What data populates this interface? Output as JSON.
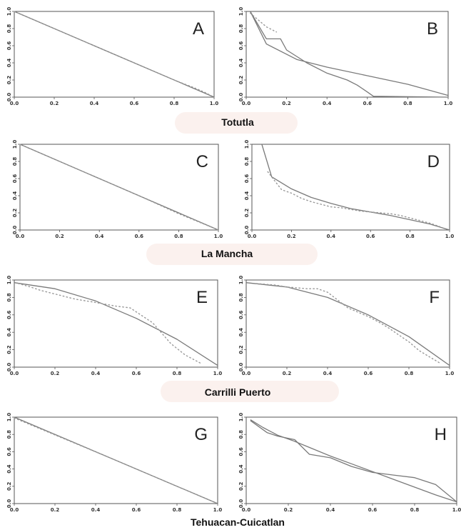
{
  "site_labels": [
    "Totutla",
    "La Mancha",
    "Carrilli Puerto",
    "Tehuacan-Cuicatlan"
  ],
  "chart_data": [
    {
      "type": "line",
      "panel": "A",
      "xlim": [
        0,
        1
      ],
      "ylim": [
        0,
        1
      ],
      "xticks": [
        "0.0",
        "0.2",
        "0.4",
        "0.6",
        "0.8",
        "1.0"
      ],
      "yticks": [
        "0.0",
        "0.2",
        "0.4",
        "0.6",
        "0.8",
        "1.0"
      ],
      "series": [
        {
          "style": "solid",
          "x": [
            0,
            1
          ],
          "y": [
            1,
            0
          ]
        },
        {
          "style": "dotted",
          "x": [
            0,
            0.1,
            0.2,
            0.3,
            0.4,
            0.5,
            0.6,
            0.7,
            0.8,
            0.9,
            0.95,
            1.0
          ],
          "y": [
            1,
            0.9,
            0.8,
            0.7,
            0.6,
            0.5,
            0.4,
            0.3,
            0.2,
            0.11,
            0.06,
            0.0
          ]
        }
      ]
    },
    {
      "type": "line",
      "panel": "B",
      "xlim": [
        0,
        1
      ],
      "ylim": [
        0,
        1
      ],
      "xticks": [
        "0.0",
        "0.2",
        "0.4",
        "0.6",
        "0.8",
        "1.0"
      ],
      "yticks": [
        "0.0",
        "0.2",
        "0.4",
        "0.6",
        "0.8",
        "1.0"
      ],
      "series": [
        {
          "style": "solid",
          "x": [
            0.02,
            0.1,
            0.17,
            0.2,
            0.3,
            0.4,
            0.5,
            0.55,
            0.6,
            0.63,
            1.0
          ],
          "y": [
            1.0,
            0.68,
            0.68,
            0.55,
            0.4,
            0.28,
            0.2,
            0.14,
            0.06,
            0.01,
            0.0
          ]
        },
        {
          "style": "solid",
          "x": [
            0.02,
            0.1,
            0.25,
            0.4,
            0.6,
            0.8,
            1.0
          ],
          "y": [
            1.0,
            0.62,
            0.44,
            0.35,
            0.25,
            0.15,
            0.02
          ]
        },
        {
          "style": "dotted",
          "x": [
            0.02,
            0.06,
            0.1,
            0.15
          ],
          "y": [
            0.98,
            0.9,
            0.82,
            0.76
          ]
        }
      ]
    },
    {
      "type": "line",
      "panel": "C",
      "xlim": [
        0,
        1
      ],
      "ylim": [
        0,
        1
      ],
      "xticks": [
        "0.0",
        "0.2",
        "0.4",
        "0.6",
        "0.8",
        "1.0"
      ],
      "yticks": [
        "0.0",
        "0.2",
        "0.4",
        "0.6",
        "0.8",
        "1.0"
      ],
      "series": [
        {
          "style": "solid",
          "x": [
            0,
            1
          ],
          "y": [
            1,
            0
          ]
        },
        {
          "style": "dotted",
          "x": [
            0,
            0.2,
            0.4,
            0.6,
            0.8,
            1.0
          ],
          "y": [
            1,
            0.8,
            0.6,
            0.4,
            0.19,
            0.0
          ]
        }
      ]
    },
    {
      "type": "line",
      "panel": "D",
      "xlim": [
        0,
        1
      ],
      "ylim": [
        0,
        1
      ],
      "xticks": [
        "0.0",
        "0.2",
        "0.4",
        "0.6",
        "0.8",
        "1.0"
      ],
      "yticks": [
        "0.0",
        "0.2",
        "0.4",
        "0.6",
        "0.8",
        "1.0"
      ],
      "series": [
        {
          "style": "solid",
          "x": [
            0.05,
            0.1,
            0.2,
            0.3,
            0.4,
            0.5,
            0.6,
            0.7,
            0.8,
            0.9,
            1.0
          ],
          "y": [
            1.0,
            0.62,
            0.48,
            0.38,
            0.31,
            0.25,
            0.21,
            0.17,
            0.12,
            0.07,
            0.0
          ]
        },
        {
          "style": "dotted",
          "x": [
            0.08,
            0.12,
            0.15,
            0.2,
            0.25,
            0.3,
            0.35,
            0.4,
            0.45,
            0.5,
            0.55,
            0.6,
            0.65,
            0.7,
            0.75,
            0.8,
            0.85,
            0.9,
            0.95
          ],
          "y": [
            0.68,
            0.56,
            0.47,
            0.43,
            0.37,
            0.33,
            0.3,
            0.27,
            0.26,
            0.24,
            0.22,
            0.21,
            0.2,
            0.19,
            0.17,
            0.14,
            0.11,
            0.08,
            0.04
          ]
        }
      ]
    },
    {
      "type": "line",
      "panel": "E",
      "xlim": [
        0,
        1
      ],
      "ylim": [
        0,
        1
      ],
      "xticks": [
        "0.0",
        "0.2",
        "0.4",
        "0.6",
        "0.8",
        "1.0"
      ],
      "yticks": [
        "0.0",
        "0.2",
        "0.4",
        "0.6",
        "0.8",
        "1.0"
      ],
      "series": [
        {
          "style": "solid",
          "x": [
            0,
            0.2,
            0.4,
            0.6,
            0.8,
            1.0
          ],
          "y": [
            0.97,
            0.9,
            0.76,
            0.56,
            0.32,
            0.02
          ]
        },
        {
          "style": "dotted",
          "x": [
            0.02,
            0.08,
            0.13,
            0.3,
            0.38,
            0.5,
            0.57,
            0.68,
            0.77,
            0.84,
            0.92
          ],
          "y": [
            0.96,
            0.92,
            0.88,
            0.78,
            0.75,
            0.7,
            0.68,
            0.51,
            0.27,
            0.14,
            0.04
          ]
        }
      ]
    },
    {
      "type": "line",
      "panel": "F",
      "xlim": [
        0,
        1
      ],
      "ylim": [
        0,
        1
      ],
      "xticks": [
        "0.0",
        "0.2",
        "0.4",
        "0.6",
        "0.8",
        "1.0"
      ],
      "yticks": [
        "0.0",
        "0.2",
        "0.4",
        "0.6",
        "0.8",
        "1.0"
      ],
      "series": [
        {
          "style": "solid",
          "x": [
            0,
            0.2,
            0.4,
            0.6,
            0.8,
            1.0
          ],
          "y": [
            0.97,
            0.92,
            0.8,
            0.6,
            0.35,
            0.02
          ]
        },
        {
          "style": "dotted",
          "x": [
            0.05,
            0.1,
            0.15,
            0.2,
            0.25,
            0.3,
            0.35,
            0.4,
            0.45,
            0.5,
            0.55,
            0.6,
            0.65,
            0.7,
            0.75,
            0.8,
            0.85,
            0.9,
            0.95
          ],
          "y": [
            0.96,
            0.95,
            0.94,
            0.92,
            0.91,
            0.9,
            0.9,
            0.86,
            0.77,
            0.68,
            0.63,
            0.58,
            0.52,
            0.45,
            0.37,
            0.29,
            0.19,
            0.12,
            0.05
          ]
        }
      ]
    },
    {
      "type": "line",
      "panel": "G",
      "xlim": [
        0,
        1
      ],
      "ylim": [
        0,
        1
      ],
      "xticks": [
        "0.0",
        "0.2",
        "0.4",
        "0.6",
        "0.8",
        "1.0"
      ],
      "yticks": [
        "0.0",
        "0.2",
        "0.4",
        "0.6",
        "0.8",
        "1.0"
      ],
      "series": [
        {
          "style": "solid",
          "x": [
            0,
            1
          ],
          "y": [
            1,
            0
          ]
        },
        {
          "style": "dotted",
          "x": [
            0,
            0.5,
            1.0
          ],
          "y": [
            0.99,
            0.5,
            0.0
          ]
        }
      ]
    },
    {
      "type": "line",
      "panel": "H",
      "xlim": [
        0,
        1
      ],
      "ylim": [
        0,
        1
      ],
      "xticks": [
        "0.0",
        "0.2",
        "0.4",
        "0.6",
        "0.8",
        "1.0"
      ],
      "yticks": [
        "0.0",
        "0.2",
        "0.4",
        "0.6",
        "0.8",
        "1.0"
      ],
      "series": [
        {
          "style": "solid",
          "x": [
            0.02,
            0.08,
            0.15,
            0.22,
            0.3,
            0.4,
            0.5,
            0.6,
            0.7,
            0.8,
            0.9,
            1.0
          ],
          "y": [
            0.97,
            0.88,
            0.79,
            0.73,
            0.65,
            0.55,
            0.46,
            0.37,
            0.28,
            0.19,
            0.1,
            0.02
          ]
        },
        {
          "style": "solid",
          "x": [
            0.02,
            0.1,
            0.15,
            0.23,
            0.3,
            0.4,
            0.5,
            0.6,
            0.7,
            0.8,
            0.9,
            1.0
          ],
          "y": [
            0.96,
            0.82,
            0.78,
            0.74,
            0.57,
            0.53,
            0.43,
            0.36,
            0.33,
            0.3,
            0.22,
            0.02
          ]
        }
      ]
    }
  ]
}
